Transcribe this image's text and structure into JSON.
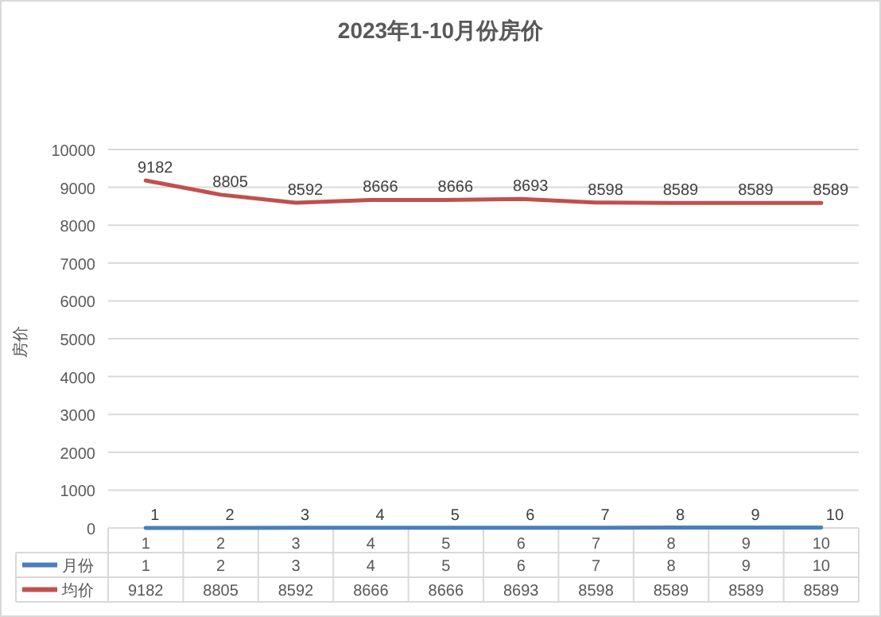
{
  "chart_data": {
    "type": "line",
    "title": "2023年1-10月份房价",
    "ylabel": "房价",
    "categories": [
      "1",
      "2",
      "3",
      "4",
      "5",
      "6",
      "7",
      "8",
      "9",
      "10"
    ],
    "series": [
      {
        "name": "月份",
        "color": "#4a7ebb",
        "values": [
          1,
          2,
          3,
          4,
          5,
          6,
          7,
          8,
          9,
          10
        ],
        "value_labels": [
          "1",
          "2",
          "3",
          "4",
          "5",
          "6",
          "7",
          "8",
          "9",
          "10"
        ]
      },
      {
        "name": "均价",
        "color": "#c0504d",
        "values": [
          9182,
          8805,
          8592,
          8666,
          8666,
          8693,
          8598,
          8589,
          8589,
          8589
        ]
      }
    ],
    "annotations": [
      {
        "text": "9182",
        "x": "1",
        "y": 9182
      },
      {
        "text": "8805",
        "x": "2",
        "y": 8805
      },
      {
        "text": "8592",
        "x": "3",
        "y": 8592
      },
      {
        "text": "8666",
        "x": "4",
        "y": 8666
      },
      {
        "text": "8666",
        "x": "5",
        "y": 8666
      },
      {
        "text": "8693",
        "x": "6",
        "y": 8693
      },
      {
        "text": "8598",
        "x": "7",
        "y": 8598
      },
      {
        "text": "8589",
        "x": "8",
        "y": 8589
      },
      {
        "text": "8589",
        "x": "9",
        "y": 8589
      },
      "8589"
    ],
    "ylim": [
      0,
      10000
    ],
    "yticks": [
      0,
      1000,
      2000,
      3000,
      4000,
      5000,
      6000,
      7000,
      8000,
      9000,
      10000
    ],
    "grid": "y",
    "data_labels": true,
    "legend": "bottom",
    "line_style": "solid"
  }
}
